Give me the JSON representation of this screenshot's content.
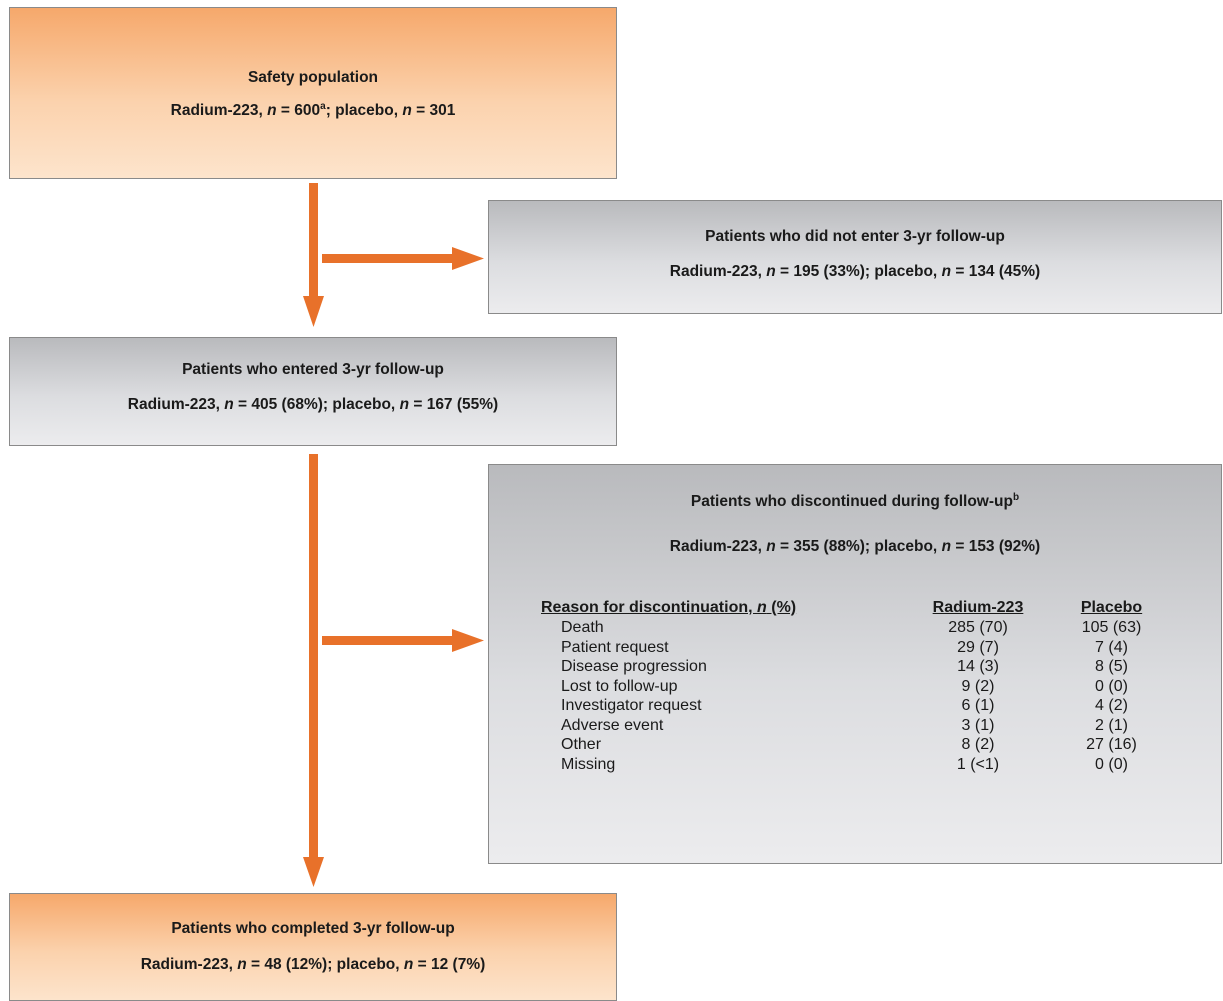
{
  "boxes": {
    "safety": {
      "title": "Safety population",
      "line_a": "Radium-223, ",
      "n1": "n",
      "line_b": " = 600",
      "sup": "a",
      "line_c": "; placebo, ",
      "n2": "n",
      "line_d": " = 301"
    },
    "not_enter": {
      "title": "Patients who did not enter 3-yr follow-up",
      "line_a": "Radium-223, ",
      "n1": "n",
      "line_b": " = 195 (33%); placebo, ",
      "n2": "n",
      "line_c": " = 134 (45%)"
    },
    "entered": {
      "title": "Patients who entered 3-yr follow-up",
      "line_a": "Radium-223, ",
      "n1": "n",
      "line_b": " = 405 (68%); placebo, ",
      "n2": "n",
      "line_c": " = 167 (55%)"
    },
    "discontinued": {
      "title": "Patients who discontinued during follow-up",
      "title_sup": "b",
      "line_a": "Radium-223, ",
      "n1": "n",
      "line_b": " = 355 (88%); placebo, ",
      "n2": "n",
      "line_c": " = 153 (92%)",
      "table": {
        "header_a": "Reason for discontinuation, ",
        "header_n": "n",
        "header_b": " (%)",
        "col_radium": "Radium-223",
        "col_placebo": "Placebo",
        "rows": [
          {
            "reason": "Death",
            "radium": "285 (70)",
            "placebo": "105 (63)"
          },
          {
            "reason": "Patient request",
            "radium": "29 (7)",
            "placebo": "7 (4)"
          },
          {
            "reason": "Disease progression",
            "radium": "14 (3)",
            "placebo": "8 (5)"
          },
          {
            "reason": "Lost to follow-up",
            "radium": "9 (2)",
            "placebo": "0 (0)"
          },
          {
            "reason": "Investigator request",
            "radium": "6 (1)",
            "placebo": "4 (2)"
          },
          {
            "reason": "Adverse event",
            "radium": "3 (1)",
            "placebo": "2 (1)"
          },
          {
            "reason": "Other",
            "radium": "8 (2)",
            "placebo": "27 (16)"
          },
          {
            "reason": "Missing",
            "radium": "1 (<1)",
            "placebo": "0 (0)"
          }
        ]
      }
    },
    "completed": {
      "title": "Patients who completed 3-yr follow-up",
      "line_a": "Radium-223, ",
      "n1": "n",
      "line_b": " = 48 (12%); placebo, ",
      "n2": "n",
      "line_c": " = 12 (7%)"
    }
  },
  "colors": {
    "arrow": "#e8712a",
    "orange_top": "#f6a86b",
    "grey_top": "#b9babd",
    "border": "#8a8a8a"
  }
}
